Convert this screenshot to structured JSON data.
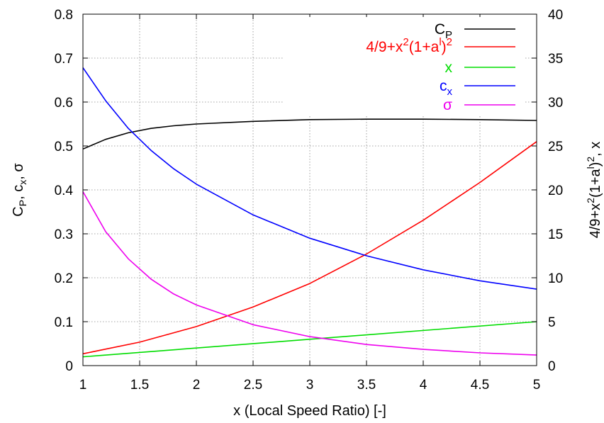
{
  "chart_data": {
    "type": "line",
    "xlabel": "x (Local Speed Ratio) [-]",
    "xlim": [
      1,
      5
    ],
    "x_ticks": [
      "1",
      "1.5",
      "2",
      "2.5",
      "3",
      "3.5",
      "4",
      "4.5",
      "5"
    ],
    "ylim_left": [
      0,
      0.8
    ],
    "y_left_ticks": [
      "0",
      "0.1",
      "0.2",
      "0.3",
      "0.4",
      "0.5",
      "0.6",
      "0.7",
      "0.8"
    ],
    "ylim_right": [
      0,
      40
    ],
    "y_right_ticks": [
      "0",
      "5",
      "10",
      "15",
      "20",
      "25",
      "30",
      "35",
      "40"
    ],
    "grid": true,
    "legend_position": "top-right",
    "series": [
      {
        "name": "C_P",
        "axis": "left",
        "color": "#000000",
        "x": [
          1.0,
          1.2,
          1.4,
          1.6,
          1.8,
          2.0,
          2.5,
          3.0,
          3.5,
          4.0,
          4.5,
          5.0
        ],
        "y": [
          0.493,
          0.515,
          0.53,
          0.54,
          0.546,
          0.55,
          0.556,
          0.56,
          0.561,
          0.561,
          0.56,
          0.558
        ]
      },
      {
        "name": "4/9+x^2(1+a')^2",
        "axis": "right",
        "color": "#ff0000",
        "x": [
          1.0,
          1.5,
          2.0,
          2.5,
          3.0,
          3.5,
          4.0,
          4.5,
          5.0
        ],
        "y": [
          1.35,
          2.67,
          4.44,
          6.67,
          9.35,
          12.7,
          16.55,
          20.85,
          25.5
        ]
      },
      {
        "name": "x",
        "axis": "right",
        "color": "#00dd00",
        "x": [
          1.0,
          5.0
        ],
        "y": [
          1.0,
          5.0
        ]
      },
      {
        "name": "c_x",
        "axis": "left",
        "color": "#0000ff",
        "x": [
          1.0,
          1.2,
          1.4,
          1.6,
          1.8,
          2.0,
          2.5,
          3.0,
          3.5,
          4.0,
          4.5,
          5.0
        ],
        "y": [
          0.678,
          0.603,
          0.54,
          0.49,
          0.448,
          0.413,
          0.343,
          0.29,
          0.25,
          0.218,
          0.193,
          0.174
        ]
      },
      {
        "name": "σ",
        "axis": "left",
        "color": "#ee00ee",
        "x": [
          1.0,
          1.2,
          1.4,
          1.6,
          1.8,
          2.0,
          2.5,
          3.0,
          3.5,
          4.0,
          4.5,
          5.0
        ],
        "y": [
          0.396,
          0.305,
          0.243,
          0.197,
          0.163,
          0.138,
          0.093,
          0.066,
          0.048,
          0.037,
          0.029,
          0.024
        ]
      }
    ]
  }
}
